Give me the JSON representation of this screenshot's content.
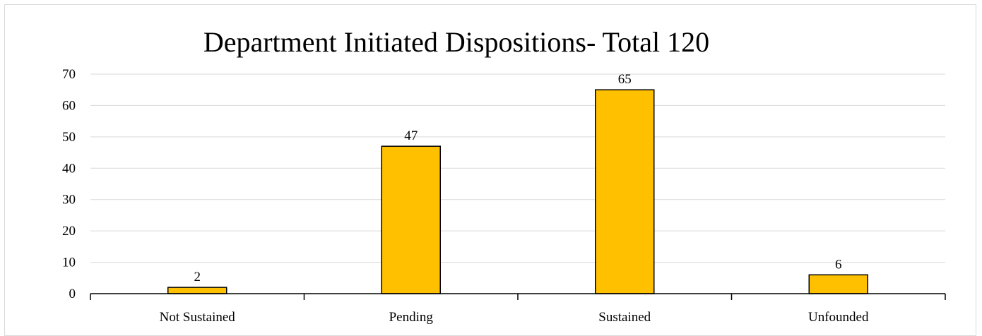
{
  "chart_data": {
    "type": "bar",
    "title": "Department Initiated Dispositions- Total 120",
    "categories": [
      "Not Sustained",
      "Pending",
      "Sustained",
      "Unfounded"
    ],
    "values": [
      2,
      47,
      65,
      6
    ],
    "ylim": [
      0,
      70
    ],
    "yticks": [
      0,
      10,
      20,
      30,
      40,
      50,
      60,
      70
    ],
    "xlabel": "",
    "ylabel": "",
    "grid": true,
    "legend": "none",
    "bar_color": "#FFC000",
    "bar_edge_color": "#000000",
    "grid_color": "#d9d9d9"
  }
}
